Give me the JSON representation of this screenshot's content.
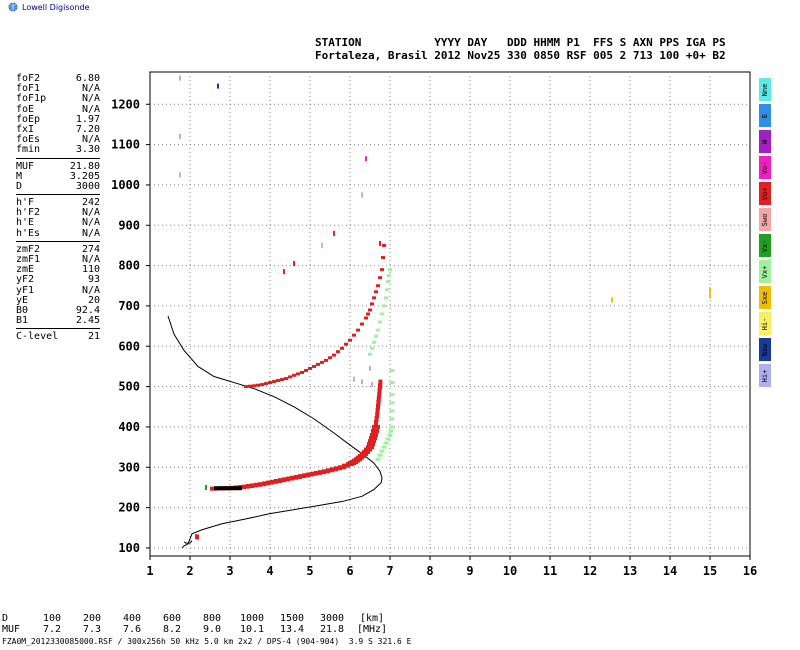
{
  "brand": "Lowell Digisonde",
  "header": {
    "line1": "STATION           YYYY DAY   DDD HHMM P1  FFS S AXN PPS IGA PS",
    "line2": "Fortaleza, Brasil 2012 Nov25 330 0850 RSF 005 2 713 100 +0+ B2"
  },
  "params": {
    "group1": [
      {
        "name": "foF2",
        "value": "6.80"
      },
      {
        "name": "foF1",
        "value": "N/A"
      },
      {
        "name": "foF1p",
        "value": "N/A"
      },
      {
        "name": "foE",
        "value": "N/A"
      },
      {
        "name": "foEp",
        "value": "1.97"
      },
      {
        "name": "fxI",
        "value": "7.20"
      },
      {
        "name": "foEs",
        "value": "N/A"
      },
      {
        "name": "fmin",
        "value": "3.30"
      }
    ],
    "group2": [
      {
        "name": "MUF",
        "value": "21.80"
      },
      {
        "name": "M",
        "value": "3.205"
      },
      {
        "name": "D",
        "value": "3000"
      }
    ],
    "group3": [
      {
        "name": "h'F",
        "value": "242"
      },
      {
        "name": "h'F2",
        "value": "N/A"
      },
      {
        "name": "h'E",
        "value": "N/A"
      },
      {
        "name": "h'Es",
        "value": "N/A"
      }
    ],
    "group4": [
      {
        "name": "zmF2",
        "value": "274"
      },
      {
        "name": "zmF1",
        "value": "N/A"
      },
      {
        "name": "zmE",
        "value": "110"
      },
      {
        "name": "yF2",
        "value": "93"
      },
      {
        "name": "yF1",
        "value": "N/A"
      },
      {
        "name": "yE",
        "value": "20"
      },
      {
        "name": "B0",
        "value": "92.4"
      },
      {
        "name": "B1",
        "value": "2.45"
      }
    ],
    "group5": [
      {
        "name": "C-level",
        "value": "21"
      }
    ]
  },
  "muf_table": {
    "row1_label": "D",
    "row1_values": [
      "100",
      "200",
      "400",
      "600",
      "800",
      "1000",
      "1500",
      "3000",
      "[km]"
    ],
    "row2_label": "MUF",
    "row2_values": [
      "7.2",
      "7.3",
      "7.6",
      "8.2",
      "9.0",
      "10.1",
      "13.4",
      "21.8",
      "[MHz]"
    ]
  },
  "footer": "FZA0M_2012330085000.RSF / 300x256h 50 kHz 5.0 km 2x2 / DPS-4 (904-904)  3.9 S 321.6 E",
  "legend": [
    {
      "label": "Nne",
      "color": "#5fe8e8"
    },
    {
      "label": "E",
      "color": "#2f8fe8"
    },
    {
      "label": "W",
      "color": "#a020c0"
    },
    {
      "label": "Vo-",
      "color": "#f020c0"
    },
    {
      "label": "Vo+",
      "color": "#e02020"
    },
    {
      "label": "Swo",
      "color": "#f2a8a8"
    },
    {
      "label": "Vx-",
      "color": "#20a020"
    },
    {
      "label": "Vx+",
      "color": "#a0f0a0"
    },
    {
      "label": "Sxe",
      "color": "#f0c000"
    },
    {
      "label": "Hi-",
      "color": "#f8f060"
    },
    {
      "label": "Nxw",
      "color": "#1a3a9a"
    },
    {
      "label": "Hi+",
      "color": "#b0b0f0"
    }
  ],
  "chart_data": {
    "type": "scatter",
    "xlim": [
      1,
      16
    ],
    "ylim": [
      80,
      1280
    ],
    "x_ticks": [
      "1",
      "2",
      "3",
      "4",
      "5",
      "6",
      "7",
      "8",
      "9",
      "10",
      "11",
      "12",
      "13",
      "14",
      "15",
      "16"
    ],
    "y_ticks": [
      "100",
      "200",
      "300",
      "400",
      "500",
      "600",
      "700",
      "800",
      "900",
      "1000",
      "1100",
      "1200"
    ],
    "grid": true,
    "profile_curve": {
      "color": "#000000",
      "x": [
        1.8,
        1.85,
        1.95,
        2.05,
        2.3,
        2.8,
        3.4,
        4.0,
        4.6,
        5.2,
        5.8,
        6.3,
        6.6,
        6.78,
        6.8,
        6.75,
        6.6,
        6.35,
        6.0,
        5.6,
        5.1,
        4.6,
        4.1,
        3.6,
        3.1,
        2.6,
        2.2,
        1.85,
        1.6,
        1.45
      ],
      "y": [
        100,
        105,
        110,
        135,
        145,
        160,
        172,
        185,
        195,
        205,
        215,
        228,
        245,
        262,
        274,
        290,
        310,
        330,
        355,
        385,
        420,
        450,
        475,
        495,
        510,
        525,
        550,
        590,
        630,
        675
      ]
    },
    "e_trace": {
      "color": "#000000",
      "x": [
        1.85,
        1.9,
        2.0,
        2.05
      ],
      "y": [
        115,
        112,
        112,
        118
      ]
    },
    "o_trace_low": {
      "color": "#e02020",
      "x": [
        2.6,
        2.8,
        3.0,
        3.2,
        3.4,
        3.6,
        3.8,
        4.0,
        4.2,
        4.4,
        4.6,
        4.8,
        5.0,
        5.2,
        5.4,
        5.6,
        5.8,
        6.0,
        6.1,
        6.2,
        6.3,
        6.4,
        6.5,
        6.55,
        6.6,
        6.65
      ],
      "y": [
        247,
        248,
        248,
        250,
        252,
        255,
        258,
        262,
        266,
        270,
        274,
        278,
        282,
        286,
        290,
        295,
        300,
        308,
        313,
        320,
        328,
        338,
        350,
        365,
        380,
        400
      ]
    },
    "o_trace_high": {
      "color": "#e02020",
      "x": [
        6.65,
        6.68,
        6.7,
        6.72,
        6.74,
        6.76
      ],
      "y": [
        410,
        430,
        450,
        470,
        490,
        510
      ]
    },
    "x_trace": {
      "color": "#a0f0a0",
      "x": [
        6.7,
        6.8,
        6.9,
        7.0,
        7.05,
        7.05,
        7.05,
        7.05
      ],
      "y": [
        320,
        340,
        360,
        380,
        400,
        440,
        480,
        540
      ]
    },
    "multihop_trace": {
      "color": "#e02020",
      "x": [
        3.4,
        3.6,
        3.8,
        4.0,
        4.2,
        4.4,
        4.6,
        4.8,
        5.0,
        5.2,
        5.4,
        5.6,
        5.8,
        6.0,
        6.2,
        6.4,
        6.5,
        6.6,
        6.7,
        6.8,
        6.85
      ],
      "y": [
        500,
        502,
        505,
        510,
        515,
        520,
        528,
        535,
        545,
        555,
        565,
        578,
        595,
        615,
        640,
        670,
        690,
        720,
        750,
        790,
        850
      ]
    },
    "multihop_x_trace": {
      "color": "#a0f0a0",
      "x": [
        6.5,
        6.6,
        6.7,
        6.8,
        6.9,
        6.95,
        7.0
      ],
      "y": [
        580,
        610,
        640,
        680,
        720,
        760,
        790
      ]
    },
    "scatter_points": [
      {
        "x": 1.75,
        "y": 1265,
        "color": "#b0b0f0"
      },
      {
        "x": 2.7,
        "y": 1245,
        "color": "#1a3a9a"
      },
      {
        "x": 1.75,
        "y": 1120,
        "color": "#b0b0f0"
      },
      {
        "x": 1.75,
        "y": 1025,
        "color": "#b0b0f0"
      },
      {
        "x": 6.4,
        "y": 1065,
        "color": "#f020c0"
      },
      {
        "x": 6.3,
        "y": 975,
        "color": "#b0b0f0"
      },
      {
        "x": 5.6,
        "y": 880,
        "color": "#e02020"
      },
      {
        "x": 5.3,
        "y": 850,
        "color": "#f2a8a8"
      },
      {
        "x": 6.75,
        "y": 855,
        "color": "#e02020"
      },
      {
        "x": 4.6,
        "y": 805,
        "color": "#e02020"
      },
      {
        "x": 4.35,
        "y": 785,
        "color": "#e02020"
      },
      {
        "x": 12.55,
        "y": 715,
        "color": "#f0c000"
      },
      {
        "x": 15.0,
        "y": 740,
        "color": "#f0c000"
      },
      {
        "x": 15.0,
        "y": 725,
        "color": "#f0c000"
      },
      {
        "x": 6.5,
        "y": 545,
        "color": "#b0b0f0"
      },
      {
        "x": 6.1,
        "y": 518,
        "color": "#b0b0f0"
      },
      {
        "x": 6.3,
        "y": 512,
        "color": "#b0b0f0"
      },
      {
        "x": 6.55,
        "y": 505,
        "color": "#b0b0f0"
      },
      {
        "x": 2.4,
        "y": 250,
        "color": "#20a020"
      },
      {
        "x": 2.15,
        "y": 128,
        "color": "#e02020"
      },
      {
        "x": 2.2,
        "y": 127,
        "color": "#e02020"
      }
    ]
  }
}
